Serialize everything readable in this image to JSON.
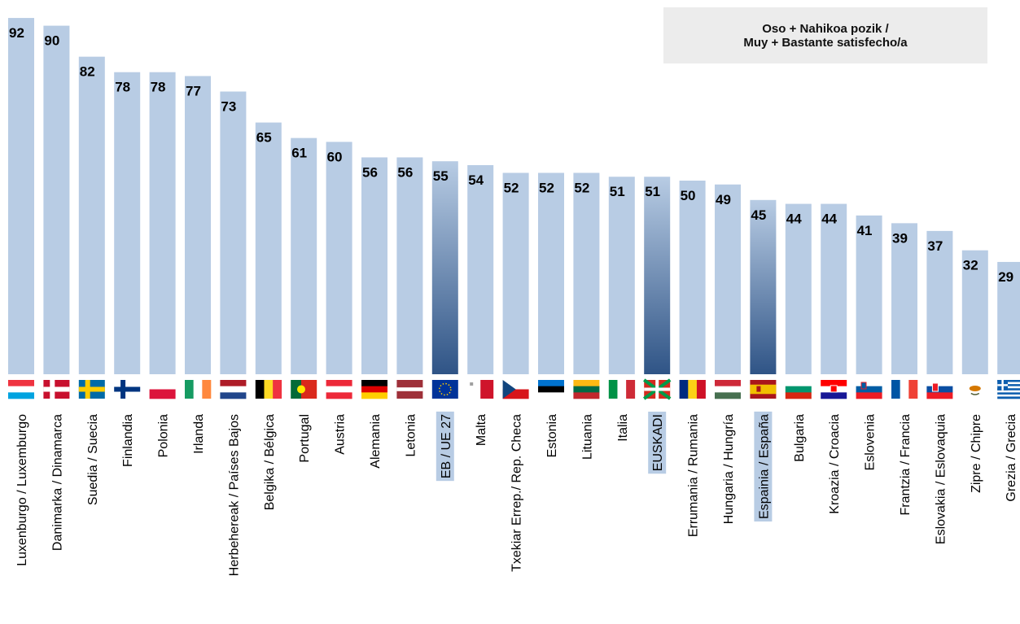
{
  "chart_data": {
    "type": "bar",
    "legend": {
      "line1": "Oso + Nahikoa pozik /",
      "line2": "Muy + Bastante satisfecho/a"
    },
    "ylim": [
      0,
      100
    ],
    "colors": {
      "bar": "#b8cce4",
      "highlight_top": "#b8cce4",
      "highlight_bottom": "#2f5486"
    },
    "bars": [
      {
        "label": "Luxenburgo / Luxemburgo",
        "value": 92,
        "flag": "luxembourg"
      },
      {
        "label": "Danimarka / Dinamarca",
        "value": 90,
        "flag": "denmark"
      },
      {
        "label": "Suedia / Suecia",
        "value": 82,
        "flag": "sweden"
      },
      {
        "label": "Finlandia",
        "value": 78,
        "flag": "finland"
      },
      {
        "label": "Polonia",
        "value": 78,
        "flag": "poland"
      },
      {
        "label": "Irlanda",
        "value": 77,
        "flag": "ireland"
      },
      {
        "label": "Herbehereak / Países Bajos",
        "value": 73,
        "flag": "netherlands"
      },
      {
        "label": "Belgika / Bélgica",
        "value": 65,
        "flag": "belgium"
      },
      {
        "label": "Portugal",
        "value": 61,
        "flag": "portugal"
      },
      {
        "label": "Austria",
        "value": 60,
        "flag": "austria"
      },
      {
        "label": "Alemania",
        "value": 56,
        "flag": "germany"
      },
      {
        "label": "Letonia",
        "value": 56,
        "flag": "latvia"
      },
      {
        "label": "EB / UE 27",
        "value": 55,
        "flag": "eu",
        "highlight": true
      },
      {
        "label": "Malta",
        "value": 54,
        "flag": "malta"
      },
      {
        "label": "Txekiar Errep./ Rep. Checa",
        "value": 52,
        "flag": "czech"
      },
      {
        "label": "Estonia",
        "value": 52,
        "flag": "estonia"
      },
      {
        "label": "Lituania",
        "value": 52,
        "flag": "lithuania"
      },
      {
        "label": "Italia",
        "value": 51,
        "flag": "italy"
      },
      {
        "label": "EUSKADI",
        "value": 51,
        "flag": "basque",
        "highlight": true
      },
      {
        "label": "Errumania / Rumania",
        "value": 50,
        "flag": "romania"
      },
      {
        "label": "Hungaria / Hungría",
        "value": 49,
        "flag": "hungary"
      },
      {
        "label": "Espainia / España",
        "value": 45,
        "flag": "spain",
        "highlight": true
      },
      {
        "label": "Bulgaria",
        "value": 44,
        "flag": "bulgaria"
      },
      {
        "label": "Kroazia / Croacia",
        "value": 44,
        "flag": "croatia"
      },
      {
        "label": "Eslovenia",
        "value": 41,
        "flag": "slovenia"
      },
      {
        "label": "Frantzia / Francia",
        "value": 39,
        "flag": "france"
      },
      {
        "label": "Eslovakia / Eslovaquia",
        "value": 37,
        "flag": "slovakia"
      },
      {
        "label": "Zipre / Chipre",
        "value": 32,
        "flag": "cyprus"
      },
      {
        "label": "Grezia / Grecia",
        "value": 29,
        "flag": "greece"
      }
    ]
  }
}
